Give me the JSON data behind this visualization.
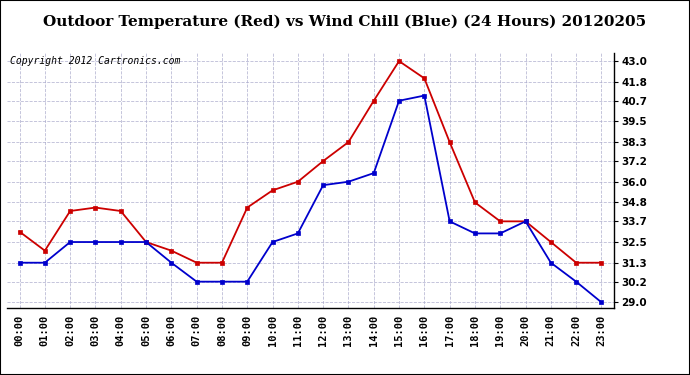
{
  "title": "Outdoor Temperature (Red) vs Wind Chill (Blue) (24 Hours) 20120205",
  "copyright": "Copyright 2012 Cartronics.com",
  "x_labels": [
    "00:00",
    "01:00",
    "02:00",
    "03:00",
    "04:00",
    "05:00",
    "06:00",
    "07:00",
    "08:00",
    "09:00",
    "10:00",
    "11:00",
    "12:00",
    "13:00",
    "14:00",
    "15:00",
    "16:00",
    "17:00",
    "18:00",
    "19:00",
    "20:00",
    "21:00",
    "22:00",
    "23:00"
  ],
  "red_data": [
    33.1,
    32.0,
    34.3,
    34.5,
    34.3,
    32.5,
    32.0,
    31.3,
    31.3,
    34.5,
    35.5,
    36.0,
    37.2,
    38.3,
    40.7,
    43.0,
    42.0,
    38.3,
    34.8,
    33.7,
    33.7,
    32.5,
    31.3,
    31.3
  ],
  "blue_data": [
    31.3,
    31.3,
    32.5,
    32.5,
    32.5,
    32.5,
    31.3,
    30.2,
    30.2,
    30.2,
    32.5,
    33.0,
    35.8,
    36.0,
    36.5,
    40.7,
    41.0,
    33.7,
    33.0,
    33.0,
    33.7,
    31.3,
    30.2,
    29.0
  ],
  "ylim_min": 28.7,
  "ylim_max": 43.5,
  "y_ticks": [
    29.0,
    30.2,
    31.3,
    32.5,
    33.7,
    34.8,
    36.0,
    37.2,
    38.3,
    39.5,
    40.7,
    41.8,
    43.0
  ],
  "red_color": "#cc0000",
  "blue_color": "#0000cc",
  "grid_color": "#aaaacc",
  "bg_color": "#ffffff",
  "plot_bg_color": "#ffffff",
  "title_fontsize": 11,
  "copyright_fontsize": 7,
  "tick_fontsize": 7.5
}
